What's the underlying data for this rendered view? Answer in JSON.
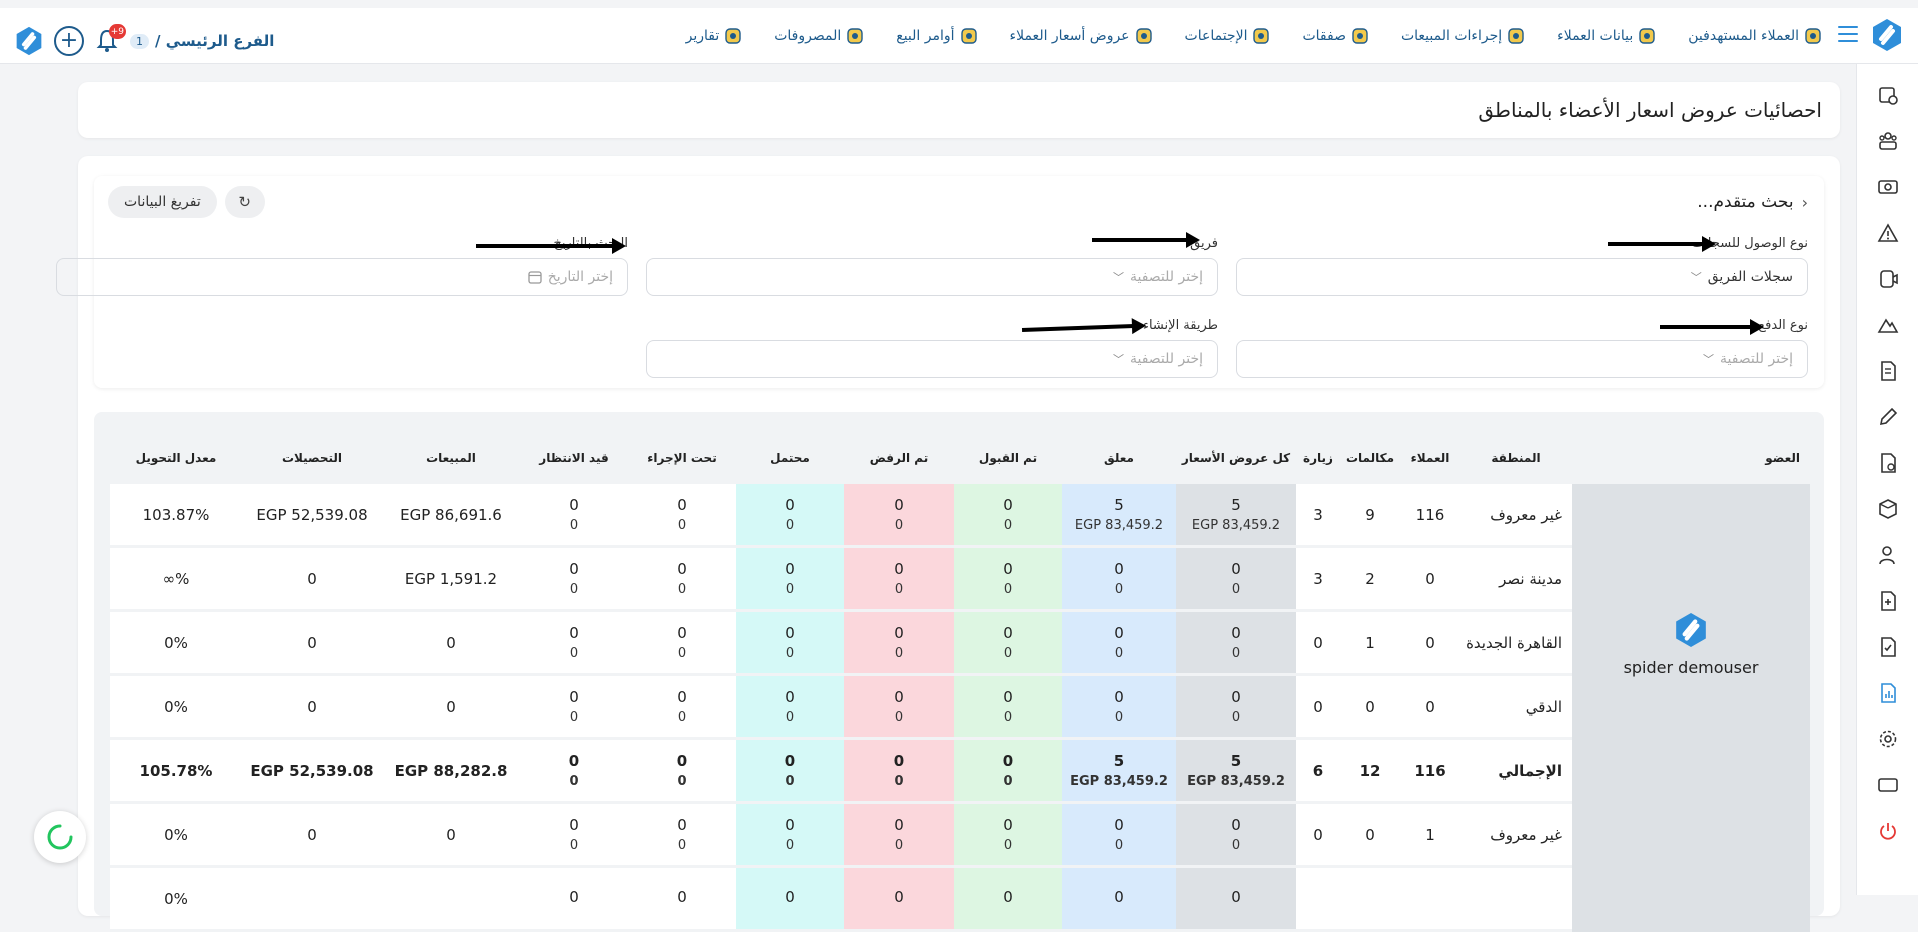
{
  "header": {
    "branch_label": "الفرع الرئيسي /",
    "branch_count": "1",
    "notif_badge": "+9",
    "nav": [
      {
        "label": "العملاء المستهدفين",
        "icon": "target-users-icon"
      },
      {
        "label": "بيانات العملاء",
        "icon": "customer-data-icon"
      },
      {
        "label": "إجراءات المبيعات",
        "icon": "sales-actions-icon"
      },
      {
        "label": "صفقات",
        "icon": "deals-icon"
      },
      {
        "label": "الإجتماعات",
        "icon": "meetings-icon"
      },
      {
        "label": "عروض أسعار العملاء",
        "icon": "quotes-icon"
      },
      {
        "label": "أوامر البيع",
        "icon": "sales-orders-icon"
      },
      {
        "label": "المصروفات",
        "icon": "expenses-icon"
      },
      {
        "label": "تقارير",
        "icon": "reports-icon"
      }
    ]
  },
  "page": {
    "title": "احصائيات عروض اسعار الأعضاء بالمناطق"
  },
  "filters": {
    "advanced_search": "بحث متقدم...",
    "clear_label": "تفريغ البيانات",
    "access_type": {
      "label": "نوع الوصول للسجلات",
      "value": "سجلات الفريق"
    },
    "team": {
      "label": "فريق",
      "placeholder": "إختر للتصفية"
    },
    "date": {
      "label": "البحث بالتاريخ",
      "placeholder": "إختر التاريخ"
    },
    "payment_type": {
      "label": "نوع الدفع",
      "placeholder": "إختر للتصفية"
    },
    "creation_method": {
      "label": "طريقة الإنشاء",
      "placeholder": "إختر للتصفية"
    }
  },
  "table": {
    "headers": {
      "member": "العضو",
      "region": "المنطقة",
      "customers": "العملاء",
      "calls": "مكالمات",
      "visits": "زيارة",
      "all_quotes": "كل عروض الأسعار",
      "pending": "معلق",
      "accepted": "تم القبول",
      "rejected": "تم الرفض",
      "probable": "محتمل",
      "in_progress": "تحت الإجراء",
      "waiting": "قيد الانتظار",
      "sales": "المبيعات",
      "collections": "التحصيلات",
      "conversion": "معدل التحويل"
    },
    "member_name": "spider demouser",
    "rows": [
      {
        "region": "غير معروف",
        "customers": "116",
        "calls": "9",
        "visits": "3",
        "all_a": "5",
        "all_b": "EGP 83,459.2",
        "pend_a": "5",
        "pend_b": "EGP 83,459.2",
        "acc_a": "0",
        "acc_b": "0",
        "rej_a": "0",
        "rej_b": "0",
        "prob_a": "0",
        "prob_b": "0",
        "prog_a": "0",
        "prog_b": "0",
        "wait_a": "0",
        "wait_b": "0",
        "sales": "EGP 86,691.6",
        "coll": "EGP 52,539.08",
        "conv": "103.87%"
      },
      {
        "region": "مدينة نصر",
        "customers": "0",
        "calls": "2",
        "visits": "3",
        "all_a": "0",
        "all_b": "0",
        "pend_a": "0",
        "pend_b": "0",
        "acc_a": "0",
        "acc_b": "0",
        "rej_a": "0",
        "rej_b": "0",
        "prob_a": "0",
        "prob_b": "0",
        "prog_a": "0",
        "prog_b": "0",
        "wait_a": "0",
        "wait_b": "0",
        "sales": "EGP 1,591.2",
        "coll": "0",
        "conv": "%∞"
      },
      {
        "region": "القاهرة الجديدة",
        "customers": "0",
        "calls": "1",
        "visits": "0",
        "all_a": "0",
        "all_b": "0",
        "pend_a": "0",
        "pend_b": "0",
        "acc_a": "0",
        "acc_b": "0",
        "rej_a": "0",
        "rej_b": "0",
        "prob_a": "0",
        "prob_b": "0",
        "prog_a": "0",
        "prog_b": "0",
        "wait_a": "0",
        "wait_b": "0",
        "sales": "0",
        "coll": "0",
        "conv": "0%"
      },
      {
        "region": "الدقي",
        "customers": "0",
        "calls": "0",
        "visits": "0",
        "all_a": "0",
        "all_b": "0",
        "pend_a": "0",
        "pend_b": "0",
        "acc_a": "0",
        "acc_b": "0",
        "rej_a": "0",
        "rej_b": "0",
        "prob_a": "0",
        "prob_b": "0",
        "prog_a": "0",
        "prog_b": "0",
        "wait_a": "0",
        "wait_b": "0",
        "sales": "0",
        "coll": "0",
        "conv": "0%"
      }
    ],
    "total": {
      "region": "الإجمالي",
      "customers": "116",
      "calls": "12",
      "visits": "6",
      "all_a": "5",
      "all_b": "EGP 83,459.2",
      "pend_a": "5",
      "pend_b": "EGP 83,459.2",
      "acc_a": "0",
      "acc_b": "0",
      "rej_a": "0",
      "rej_b": "0",
      "prob_a": "0",
      "prob_b": "0",
      "prog_a": "0",
      "prog_b": "0",
      "wait_a": "0",
      "wait_b": "0",
      "sales": "EGP 88,282.8",
      "coll": "EGP 52,539.08",
      "conv": "105.78%"
    },
    "next_rows": [
      {
        "region": "غير معروف",
        "customers": "1",
        "calls": "0",
        "visits": "0",
        "all_a": "0",
        "all_b": "0",
        "pend_a": "0",
        "pend_b": "0",
        "acc_a": "0",
        "acc_b": "0",
        "rej_a": "0",
        "rej_b": "0",
        "prob_a": "0",
        "prob_b": "0",
        "prog_a": "0",
        "prog_b": "0",
        "wait_a": "0",
        "wait_b": "0",
        "sales": "0",
        "coll": "0",
        "conv": "0%"
      },
      {
        "region": "",
        "customers": "",
        "calls": "",
        "visits": "",
        "all_a": "0",
        "all_b": "",
        "pend_a": "0",
        "pend_b": "",
        "acc_a": "0",
        "acc_b": "",
        "rej_a": "0",
        "rej_b": "",
        "prob_a": "0",
        "prob_b": "",
        "prog_a": "0",
        "prog_b": "",
        "wait_a": "0",
        "wait_b": "",
        "sales": "",
        "coll": "",
        "conv": "0%"
      }
    ]
  },
  "colors": {
    "brand": "#2f8ed9",
    "nav_text": "#1e5b8c",
    "gray_col": "#dde1e5",
    "blue_col": "#d8eafc",
    "green_col": "#ddf6e2",
    "red_col": "#fbd7dc",
    "cyan_col": "#d5f9f7"
  }
}
